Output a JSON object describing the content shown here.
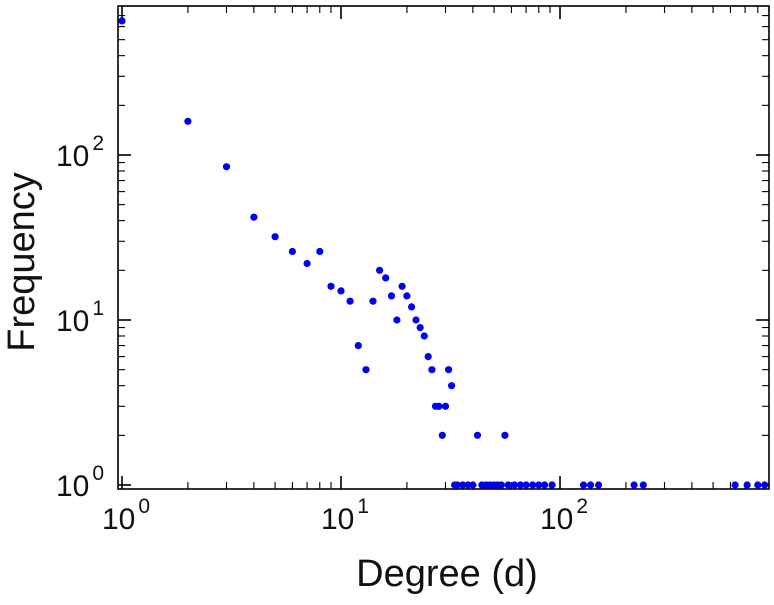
{
  "chart_data": {
    "type": "scatter",
    "title": "",
    "xlabel": "Degree (d)",
    "ylabel": "Frequency",
    "x_scale": "log",
    "y_scale": "log",
    "xlim": [
      1,
      900
    ],
    "ylim": [
      1,
      800
    ],
    "x_tick_exponents": [
      0,
      1,
      2
    ],
    "y_tick_exponents": [
      0,
      1,
      2
    ],
    "tick_label_base": "10",
    "grid": false,
    "legend": "none",
    "marker": {
      "shape": "filled-circle",
      "color": "#0000ee",
      "radius": 3.6
    },
    "axis_color": "#000000",
    "text_color": "#111111",
    "points": [
      [
        1,
        650
      ],
      [
        2,
        160
      ],
      [
        3,
        85
      ],
      [
        4,
        42
      ],
      [
        5,
        32
      ],
      [
        6,
        26
      ],
      [
        7,
        22
      ],
      [
        8,
        26
      ],
      [
        9,
        16
      ],
      [
        10,
        15
      ],
      [
        11,
        13
      ],
      [
        12,
        7
      ],
      [
        13,
        5
      ],
      [
        14,
        13
      ],
      [
        15,
        20
      ],
      [
        16,
        18
      ],
      [
        17,
        14
      ],
      [
        18,
        10
      ],
      [
        19,
        16
      ],
      [
        20,
        14
      ],
      [
        21,
        12
      ],
      [
        22,
        10
      ],
      [
        23,
        9
      ],
      [
        24,
        8
      ],
      [
        25,
        6
      ],
      [
        26,
        5
      ],
      [
        27,
        3
      ],
      [
        28,
        3
      ],
      [
        30,
        3
      ],
      [
        29,
        2
      ],
      [
        31,
        5
      ],
      [
        32,
        4
      ],
      [
        42,
        2
      ],
      [
        56,
        2
      ],
      [
        33,
        1
      ],
      [
        34,
        1
      ],
      [
        36,
        1
      ],
      [
        38,
        1
      ],
      [
        40,
        1
      ],
      [
        44,
        1
      ],
      [
        46,
        1
      ],
      [
        48,
        1
      ],
      [
        50,
        1
      ],
      [
        52,
        1
      ],
      [
        54,
        1
      ],
      [
        58,
        1
      ],
      [
        62,
        1
      ],
      [
        66,
        1
      ],
      [
        70,
        1
      ],
      [
        75,
        1
      ],
      [
        80,
        1
      ],
      [
        85,
        1
      ],
      [
        92,
        1
      ],
      [
        128,
        1
      ],
      [
        138,
        1
      ],
      [
        150,
        1
      ],
      [
        218,
        1
      ],
      [
        240,
        1
      ],
      [
        630,
        1
      ],
      [
        715,
        1
      ],
      [
        800,
        1
      ],
      [
        860,
        1
      ]
    ]
  }
}
